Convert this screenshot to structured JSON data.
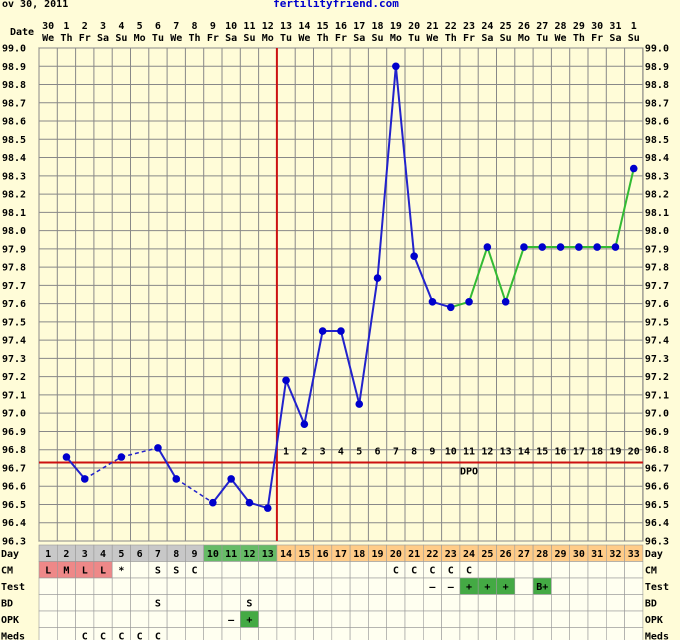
{
  "header": {
    "date_fragment": "ov 30, 2011",
    "site": "fertilityfriend.com",
    "date_label": "Date",
    "day_label": "Day"
  },
  "x_dates": [
    "30",
    "1",
    "2",
    "3",
    "4",
    "5",
    "6",
    "7",
    "8",
    "9",
    "10",
    "11",
    "12",
    "13",
    "14",
    "15",
    "16",
    "17",
    "18",
    "19",
    "20",
    "21",
    "22",
    "23",
    "24",
    "25",
    "26",
    "27",
    "28",
    "29",
    "30",
    "31",
    "1"
  ],
  "x_weekdays": [
    "We",
    "Th",
    "Fr",
    "Sa",
    "Su",
    "Mo",
    "Tu",
    "We",
    "Th",
    "Fr",
    "Sa",
    "Su",
    "Mo",
    "Tu",
    "We",
    "Th",
    "Fr",
    "Sa",
    "Su",
    "Mo",
    "Tu",
    "We",
    "Th",
    "Fr",
    "Sa",
    "Su",
    "Mo",
    "Tu",
    "We",
    "Th",
    "Fr",
    "Sa",
    "Su"
  ],
  "chart_data": {
    "type": "line",
    "ylim": [
      96.3,
      99.0
    ],
    "y_ticks": [
      "99.0",
      "98.9",
      "98.8",
      "98.7",
      "98.6",
      "98.5",
      "98.4",
      "98.3",
      "98.2",
      "98.1",
      "98.0",
      "97.9",
      "97.8",
      "97.7",
      "97.6",
      "97.5",
      "97.4",
      "97.3",
      "97.2",
      "97.1",
      "97.0",
      "96.9",
      "96.8",
      "96.7",
      "96.6",
      "96.5",
      "96.4",
      "96.3"
    ],
    "temps": [
      {
        "day": 1,
        "temp": 96.76
      },
      {
        "day": 2,
        "temp": 96.64
      },
      {
        "day": 4,
        "temp": 96.76
      },
      {
        "day": 6,
        "temp": 96.81
      },
      {
        "day": 7,
        "temp": 96.64
      },
      {
        "day": 9,
        "temp": 96.51
      },
      {
        "day": 10,
        "temp": 96.64
      },
      {
        "day": 11,
        "temp": 96.51
      },
      {
        "day": 12,
        "temp": 96.48
      },
      {
        "day": 13,
        "temp": 97.18
      },
      {
        "day": 14,
        "temp": 96.94
      },
      {
        "day": 15,
        "temp": 97.45
      },
      {
        "day": 16,
        "temp": 97.45
      },
      {
        "day": 17,
        "temp": 97.05
      },
      {
        "day": 18,
        "temp": 97.74
      },
      {
        "day": 19,
        "temp": 98.9
      },
      {
        "day": 20,
        "temp": 97.86
      },
      {
        "day": 21,
        "temp": 97.61
      },
      {
        "day": 22,
        "temp": 97.58
      },
      {
        "day": 23,
        "temp": 97.61
      },
      {
        "day": 24,
        "temp": 97.91
      },
      {
        "day": 25,
        "temp": 97.61
      },
      {
        "day": 26,
        "temp": 97.91
      },
      {
        "day": 27,
        "temp": 97.91
      },
      {
        "day": 28,
        "temp": 97.91
      },
      {
        "day": 29,
        "temp": 97.91
      },
      {
        "day": 30,
        "temp": 97.91
      },
      {
        "day": 31,
        "temp": 97.91
      },
      {
        "day": 32,
        "temp": 98.34
      }
    ],
    "coverline": 96.73,
    "ovulation_day": 12,
    "dpo_label": "DPO",
    "dpo_numbers": [
      "1",
      "2",
      "3",
      "4",
      "5",
      "6",
      "7",
      "8",
      "9",
      "10",
      "11",
      "12",
      "13",
      "14",
      "15",
      "16",
      "17",
      "18",
      "19",
      "20"
    ]
  },
  "day_numbers": [
    "1",
    "2",
    "3",
    "4",
    "5",
    "6",
    "7",
    "8",
    "9",
    "10",
    "11",
    "12",
    "13",
    "14",
    "15",
    "16",
    "17",
    "18",
    "19",
    "20",
    "21",
    "22",
    "23",
    "24",
    "25",
    "26",
    "27",
    "28",
    "29",
    "30",
    "31",
    "32",
    "33"
  ],
  "rows": {
    "cm": {
      "label": "CM",
      "cells": {
        "1": "L",
        "2": "M",
        "3": "L",
        "4": "L",
        "5": "*",
        "7": "S",
        "8": "S",
        "9": "C",
        "20": "C",
        "21": "C",
        "22": "C",
        "23": "C",
        "24": "C"
      }
    },
    "test": {
      "label": "Test",
      "cells": {
        "22": "–",
        "23": "–",
        "24": "+",
        "25": "+",
        "26": "+",
        "28": "B+"
      }
    },
    "bd": {
      "label": "BD",
      "cells": {
        "7": "S",
        "12": "S"
      }
    },
    "opk": {
      "label": "OPK",
      "cells": {
        "11": "–",
        "12": "+"
      }
    },
    "meds": {
      "label": "Meds",
      "cells": {
        "3": "C",
        "4": "C",
        "5": "C",
        "6": "C",
        "7": "C"
      }
    }
  },
  "colors": {
    "background": "#fffcd8",
    "grid": "#888888",
    "pre_line": "#2222cc",
    "post_line": "#33bb33",
    "dot": "#0000cc",
    "ovulation_line": "#cc1111",
    "coverline": "#cc1111",
    "day_menses_bg": "#c8c8c8",
    "day_fertile_bg": "#66bb66",
    "day_luteal_bg": "#ffcc88",
    "cm_menses_bg": "#ee8888",
    "test_pos_bg": "#44aa44",
    "opk_pos_bg": "#44aa44",
    "table_bg": "#fffff0"
  }
}
